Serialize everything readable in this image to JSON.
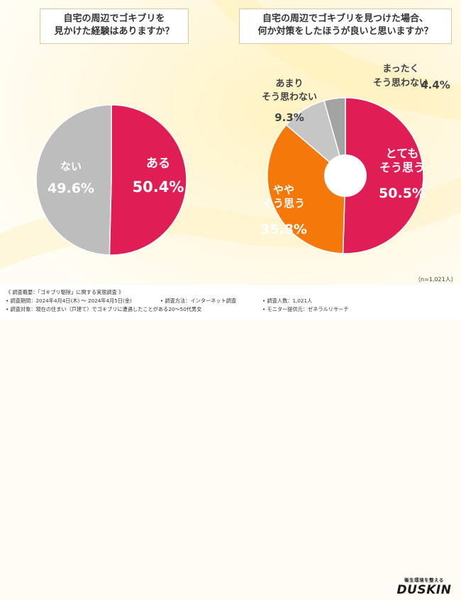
{
  "colors": {
    "crimson": "#e01e56",
    "gray": "#bdbdbd",
    "orange": "#f5780a",
    "lightgray": "#c6c6c6",
    "darkgray": "#a3a3a3"
  },
  "left_title": [
    "自宅の周辺でゴキブリを",
    "見かけた経験はありますか？"
  ],
  "right_title": [
    "自宅の周辺でゴキブリを見つけた場合、",
    "何か対策をしたほうが良いと思いますか？"
  ],
  "chart_data": [
    {
      "type": "pie",
      "title": "自宅の周辺でゴキブリを見かけた経験はありますか？",
      "slices": [
        {
          "key": "yes",
          "label": "ある",
          "value": 50.4,
          "value_text": "50.4%",
          "color": "#e01e56"
        },
        {
          "key": "no",
          "label": "ない",
          "value": 49.6,
          "value_text": "49.6%",
          "color": "#bdbdbd"
        }
      ]
    },
    {
      "type": "pie",
      "title": "自宅の周辺でゴキブリを見つけた場合、何か対策をしたほうが良いと思いますか？",
      "slices": [
        {
          "key": "strongly-agree",
          "label": "とても そう思う",
          "value": 50.5,
          "value_text": "50.5%",
          "color": "#e01e56"
        },
        {
          "key": "somewhat-agree",
          "label": "やや そう思う",
          "value": 35.8,
          "value_text": "35.8%",
          "color": "#f5780a"
        },
        {
          "key": "somewhat-disagree",
          "label": "あまり そう思わない",
          "value": 9.3,
          "value_text": "9.3%",
          "color": "#c6c6c6"
        },
        {
          "key": "strongly-disagree",
          "label": "まったく そう思わない",
          "value": 4.4,
          "value_text": "4.4%",
          "color": "#a3a3a3"
        }
      ]
    }
  ],
  "pie_text": {
    "left": {
      "yes": {
        "label_lines": [
          "ある"
        ],
        "value": "50.4%"
      },
      "no": {
        "label_lines": [
          "ない"
        ],
        "value": "49.6%"
      }
    },
    "right": {
      "strongly-agree": {
        "label_lines": [
          "とても",
          "そう思う"
        ],
        "value": "50.5%"
      },
      "somewhat-agree": {
        "label_lines": [
          "やや",
          "そう思う"
        ],
        "value": "35.8%"
      },
      "somewhat-disagree": {
        "label_lines": [
          "あまり",
          "そう思わない"
        ],
        "value": "9.3%"
      },
      "strongly-disagree": {
        "label_lines": [
          "まったく",
          "そう思わない"
        ],
        "value": "4.4%"
      }
    }
  },
  "sample_note": "（n=1,021人）",
  "footer": {
    "survey_overview": "《 調査概要：「ゴキブリ駆除」に関する実態調査 》",
    "period": "• 調査期間：2024年4月4日(木) 〜 2024年4月5日(金)",
    "method": "• 調査方法：インターネット調査",
    "respondents": "• 調査人数：1,021人",
    "target": "• 調査対象：現在の住まい（戸建て）でゴキブリに遭遇したことがある20〜50代男女",
    "provider": "• モニター提供元：ゼネラルリサーチ"
  },
  "logo": {
    "tagline": "衛生環境を整える",
    "brand": "DUSKIN"
  }
}
